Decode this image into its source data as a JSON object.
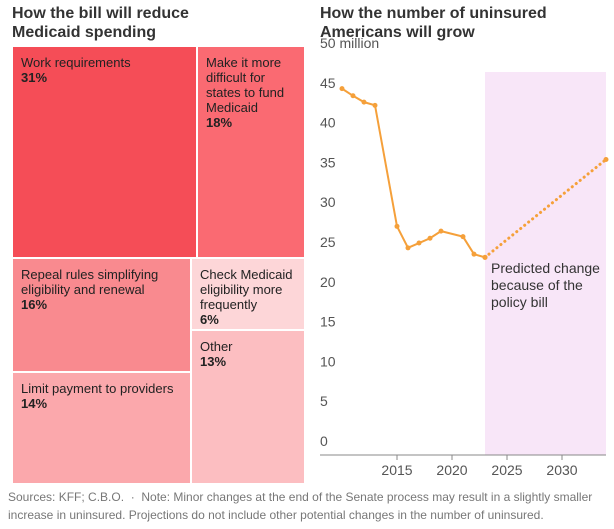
{
  "chart_data": [
    {
      "type": "treemap",
      "title": "How the bill will reduce Medicaid spending",
      "categories": [
        "Work requirements",
        "Make it more difficult for states to fund Medicaid",
        "Repeal rules simplifying eligibility and renewal",
        "Check Medicaid eligibility more frequently",
        "Limit payment to providers",
        "Other"
      ],
      "values": [
        31,
        18,
        16,
        6,
        14,
        13
      ],
      "value_labels": [
        "31%",
        "18%",
        "16%",
        "6%",
        "14%",
        "13%"
      ],
      "colors": [
        "#f54d57",
        "#fa6a72",
        "#f98a8f",
        "#fdd6d8",
        "#fba8ac",
        "#fcbec1"
      ]
    },
    {
      "type": "line",
      "title": "How the number of uninsured Americans will grow",
      "series": [
        {
          "color": "#f5a03a",
          "style": "solid",
          "x": [
            2010,
            2011,
            2012,
            2013,
            2015,
            2016,
            2017,
            2018,
            2019,
            2021,
            2022,
            2023
          ],
          "values": [
            45.4,
            44.5,
            43.7,
            43.3,
            28.1,
            25.4,
            26.0,
            26.6,
            27.5,
            26.8,
            24.6,
            24.2
          ]
        },
        {
          "color": "#f5a03a",
          "style": "dotted",
          "x": [
            2023,
            2034
          ],
          "values": [
            24.2,
            36.5
          ]
        }
      ],
      "xlim": [
        2008,
        2034
      ],
      "ylim": [
        0,
        50
      ],
      "xticks": [
        2015,
        2020,
        2025,
        2030
      ],
      "yticks": [
        0,
        5,
        10,
        15,
        20,
        25,
        30,
        35,
        40,
        {
          "value": 45,
          "label": "45"
        },
        {
          "value": 50,
          "label": "50 million"
        }
      ],
      "highlight_x": [
        2023,
        2034
      ],
      "highlight_color": "#f8e6f8",
      "annotation": "Predicted change because of the policy bill"
    }
  ],
  "source": "Sources: KFF; C.B.O.",
  "note": "Note: Minor changes at the end of the Senate process may result in a slightly smaller increase in uninsured. Projections do not include other potential changes in the number of uninsured."
}
